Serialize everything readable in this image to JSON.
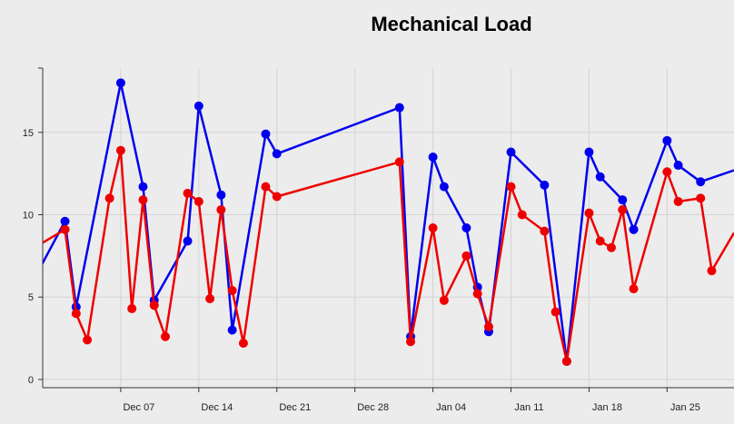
{
  "chart_data": {
    "type": "line",
    "title": "Mechanical Load",
    "xlabel": "",
    "ylabel": "",
    "x_type": "date",
    "xlim": [
      "2012-11-30",
      "2013-01-31"
    ],
    "ylim": [
      -0.5,
      18.9
    ],
    "y_ticks": [
      0,
      5,
      10,
      15
    ],
    "x_ticks": [
      {
        "date": "2012-12-07",
        "label": "Dec 07"
      },
      {
        "date": "2012-12-14",
        "label": "Dec 14"
      },
      {
        "date": "2012-12-21",
        "label": "Dec 21"
      },
      {
        "date": "2012-12-28",
        "label": "Dec 28"
      },
      {
        "date": "2013-01-04",
        "label": "Jan 04"
      },
      {
        "date": "2013-01-11",
        "label": "Jan 11"
      },
      {
        "date": "2013-01-18",
        "label": "Jan 18"
      },
      {
        "date": "2013-01-25",
        "label": "Jan 25"
      }
    ],
    "grid": true,
    "legend": "none",
    "series": [
      {
        "color": "#0000ee",
        "points": [
          {
            "x": "2012-11-29",
            "y": 5.8,
            "marker": false
          },
          {
            "x": "2012-12-02",
            "y": 9.6
          },
          {
            "x": "2012-12-03",
            "y": 4.4
          },
          {
            "x": "2012-12-07",
            "y": 18.0
          },
          {
            "x": "2012-12-09",
            "y": 11.7
          },
          {
            "x": "2012-12-10",
            "y": 4.8
          },
          {
            "x": "2012-12-13",
            "y": 8.4
          },
          {
            "x": "2012-12-14",
            "y": 16.6
          },
          {
            "x": "2012-12-16",
            "y": 11.2
          },
          {
            "x": "2012-12-17",
            "y": 3.0
          },
          {
            "x": "2012-12-20",
            "y": 14.9
          },
          {
            "x": "2012-12-21",
            "y": 13.7
          },
          {
            "x": "2013-01-01",
            "y": 16.5
          },
          {
            "x": "2013-01-02",
            "y": 2.6
          },
          {
            "x": "2013-01-04",
            "y": 13.5
          },
          {
            "x": "2013-01-05",
            "y": 11.7
          },
          {
            "x": "2013-01-07",
            "y": 9.2
          },
          {
            "x": "2013-01-08",
            "y": 5.6
          },
          {
            "x": "2013-01-09",
            "y": 2.9
          },
          {
            "x": "2013-01-11",
            "y": 13.8
          },
          {
            "x": "2013-01-14",
            "y": 11.8
          },
          {
            "x": "2013-01-16",
            "y": 1.1
          },
          {
            "x": "2013-01-18",
            "y": 13.8
          },
          {
            "x": "2013-01-19",
            "y": 12.3
          },
          {
            "x": "2013-01-21",
            "y": 10.9
          },
          {
            "x": "2013-01-22",
            "y": 9.1
          },
          {
            "x": "2013-01-25",
            "y": 14.5
          },
          {
            "x": "2013-01-26",
            "y": 13.0
          },
          {
            "x": "2013-01-28",
            "y": 12.0
          },
          {
            "x": "2013-01-31",
            "y": 12.7,
            "marker": false
          }
        ]
      },
      {
        "color": "#ee0000",
        "points": [
          {
            "x": "2012-11-30",
            "y": 8.3,
            "marker": false
          },
          {
            "x": "2012-12-02",
            "y": 9.1
          },
          {
            "x": "2012-12-03",
            "y": 4.0
          },
          {
            "x": "2012-12-04",
            "y": 2.4
          },
          {
            "x": "2012-12-06",
            "y": 11.0
          },
          {
            "x": "2012-12-07",
            "y": 13.9
          },
          {
            "x": "2012-12-08",
            "y": 4.3
          },
          {
            "x": "2012-12-09",
            "y": 10.9
          },
          {
            "x": "2012-12-10",
            "y": 4.5
          },
          {
            "x": "2012-12-11",
            "y": 2.6
          },
          {
            "x": "2012-12-13",
            "y": 11.3
          },
          {
            "x": "2012-12-14",
            "y": 10.8
          },
          {
            "x": "2012-12-15",
            "y": 4.9
          },
          {
            "x": "2012-12-16",
            "y": 10.3
          },
          {
            "x": "2012-12-17",
            "y": 5.4
          },
          {
            "x": "2012-12-18",
            "y": 2.2
          },
          {
            "x": "2012-12-20",
            "y": 11.7
          },
          {
            "x": "2012-12-21",
            "y": 11.1
          },
          {
            "x": "2013-01-01",
            "y": 13.2
          },
          {
            "x": "2013-01-02",
            "y": 2.3
          },
          {
            "x": "2013-01-04",
            "y": 9.2
          },
          {
            "x": "2013-01-05",
            "y": 4.8
          },
          {
            "x": "2013-01-07",
            "y": 7.5
          },
          {
            "x": "2013-01-08",
            "y": 5.2
          },
          {
            "x": "2013-01-09",
            "y": 3.2
          },
          {
            "x": "2013-01-11",
            "y": 11.7
          },
          {
            "x": "2013-01-12",
            "y": 10.0
          },
          {
            "x": "2013-01-14",
            "y": 9.0
          },
          {
            "x": "2013-01-15",
            "y": 4.1
          },
          {
            "x": "2013-01-16",
            "y": 1.1
          },
          {
            "x": "2013-01-18",
            "y": 10.1
          },
          {
            "x": "2013-01-19",
            "y": 8.4
          },
          {
            "x": "2013-01-20",
            "y": 8.0
          },
          {
            "x": "2013-01-21",
            "y": 10.3
          },
          {
            "x": "2013-01-22",
            "y": 5.5
          },
          {
            "x": "2013-01-25",
            "y": 12.6
          },
          {
            "x": "2013-01-26",
            "y": 10.8
          },
          {
            "x": "2013-01-28",
            "y": 11.0
          },
          {
            "x": "2013-01-29",
            "y": 6.6
          },
          {
            "x": "2013-01-31",
            "y": 8.9,
            "marker": false
          }
        ]
      }
    ]
  }
}
